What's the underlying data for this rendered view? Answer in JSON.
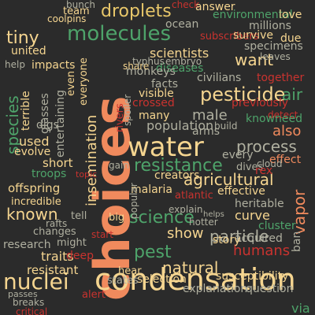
{
  "words": [
    "choices",
    "condensation",
    "water",
    "molecules",
    "pesticide",
    "droplets",
    "nuclei",
    "resistance",
    "process",
    "agricultural",
    "science",
    "species",
    "insemination",
    "particle",
    "humans",
    "pest",
    "known",
    "natural",
    "tiny",
    "vapor",
    "air",
    "also",
    "male",
    "show",
    "crossed",
    "previously",
    "visible",
    "facts",
    "want",
    "scientists",
    "population",
    "diseases",
    "monkeys",
    "entertaining",
    "terrible",
    "glasses",
    "digs",
    "troops",
    "offspring",
    "incredible",
    "evolve",
    "short",
    "used",
    "changes",
    "traits",
    "research",
    "resistant",
    "breaks",
    "critical",
    "hear",
    "selection",
    "explanation",
    "question",
    "via",
    "states",
    "susceptibility",
    "acquired",
    "cluster",
    "story",
    "curve",
    "effective",
    "heritable",
    "every",
    "effect",
    "dives",
    "rex",
    "cloud",
    "process",
    "detect",
    "knowneed",
    "united",
    "impacts",
    "help",
    "ocean",
    "share",
    "typhus",
    "embryo",
    "civilians",
    "together",
    "environmental",
    "millions",
    "love",
    "subscribers",
    "specimens",
    "team",
    "coolpins",
    "bunch",
    "check",
    "answer",
    "survive",
    "due",
    "leaves",
    "malaria",
    "creators",
    "atlantic",
    "explain",
    "helps",
    "popular",
    "even",
    "spoiler",
    "everyone",
    "rivers",
    "many",
    "arms",
    "build",
    "gain",
    "big",
    "deep",
    "might",
    "rafts",
    "tell",
    "start",
    "sheep",
    "easily",
    "alert",
    "ban",
    "topic",
    "passes",
    "condense",
    "hotter",
    "spread",
    "heat"
  ]
}
